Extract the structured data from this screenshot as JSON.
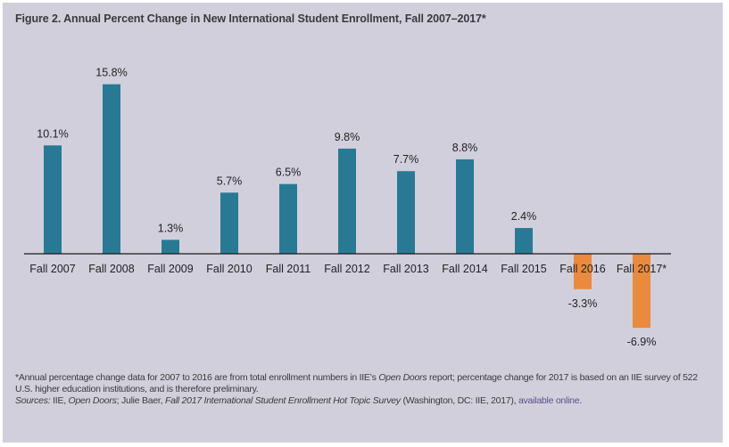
{
  "figure": {
    "title": "Figure 2. Annual Percent Change in New International Student Enrollment, Fall 2007–2017*"
  },
  "colors": {
    "background": "#d2cfdc",
    "positive_bar": "#287a94",
    "negative_bar": "#ea8a3c",
    "text": "#222222",
    "link": "#5a4d8a"
  },
  "chart_data": {
    "type": "bar",
    "title": "Figure 2. Annual Percent Change in New International Student Enrollment, Fall 2007–2017*",
    "xlabel": "",
    "ylabel": "",
    "categories": [
      "Fall 2007",
      "Fall 2008",
      "Fall 2009",
      "Fall 2010",
      "Fall 2011",
      "Fall 2012",
      "Fall 2013",
      "Fall 2014",
      "Fall 2015",
      "Fall 2016",
      "Fall 2017*"
    ],
    "values": [
      10.1,
      15.8,
      1.3,
      5.7,
      6.5,
      9.8,
      7.7,
      8.8,
      2.4,
      -3.3,
      -6.9
    ],
    "data_labels": [
      "10.1%",
      "15.8%",
      "1.3%",
      "5.7%",
      "6.5%",
      "9.8%",
      "7.7%",
      "8.8%",
      "2.4%",
      "-3.3%",
      "-6.9%"
    ],
    "units": "%",
    "ylim": [
      -6.9,
      15.8
    ],
    "grid": false,
    "legend": "none",
    "y_axis_visible": false
  },
  "notes": {
    "footnote_parts": [
      {
        "text": "*Annual percentage change data for 2007 to 2016 are from total enrollment numbers in IIE’s ",
        "italic": false
      },
      {
        "text": "Open Doors",
        "italic": true
      },
      {
        "text": " report; percentage change for 2017 is based on an IIE survey of 522 U.S. higher education institutions, and is therefore preliminary.",
        "italic": false
      }
    ],
    "sources_parts": [
      {
        "text": "Sources:",
        "italic": true
      },
      {
        "text": " IIE, ",
        "italic": false
      },
      {
        "text": "Open Doors",
        "italic": true
      },
      {
        "text": "; Julie Baer, ",
        "italic": false
      },
      {
        "text": "Fall 2017 International Student Enrollment Hot Topic Survey",
        "italic": true
      },
      {
        "text": " (Washington, DC: IIE, 2017), ",
        "italic": false
      }
    ],
    "link_text": "available online",
    "trailing": "."
  }
}
